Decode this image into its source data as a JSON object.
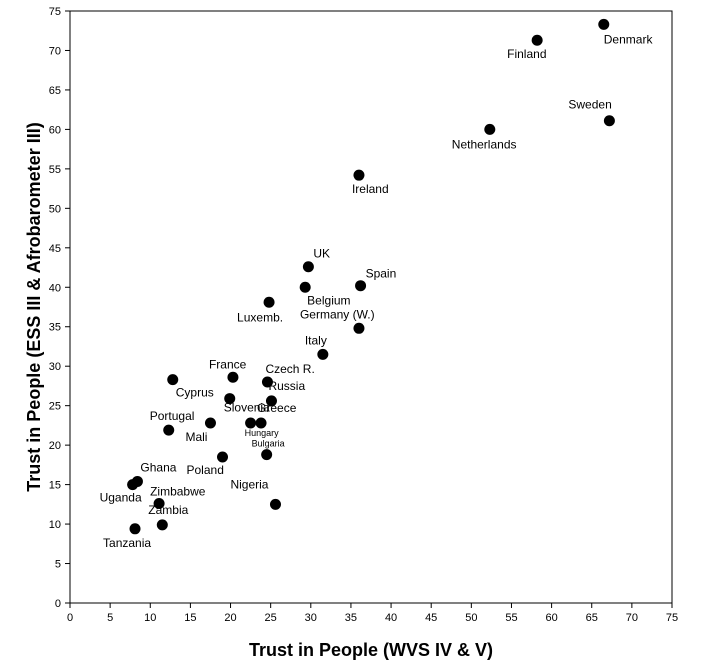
{
  "chart_data": {
    "type": "scatter",
    "title": "",
    "xlabel": "Trust in People (WVS IV & V)",
    "ylabel": "Trust in People (ESS III & Afrobarometer III)",
    "xlim": [
      0,
      75
    ],
    "ylim": [
      0,
      75
    ],
    "x_ticks": [
      0,
      5,
      10,
      15,
      20,
      25,
      30,
      35,
      40,
      45,
      50,
      55,
      60,
      65,
      70,
      75
    ],
    "y_ticks": [
      0,
      5,
      10,
      15,
      20,
      25,
      30,
      35,
      40,
      45,
      50,
      55,
      60,
      65,
      70,
      75
    ],
    "grid": false,
    "marker_color": "#000000",
    "points": [
      {
        "label": "Denmark",
        "x": 66.5,
        "y": 73.3
      },
      {
        "label": "Finland",
        "x": 58.2,
        "y": 71.3
      },
      {
        "label": "Sweden",
        "x": 67.2,
        "y": 61.1
      },
      {
        "label": "Netherlands",
        "x": 52.3,
        "y": 60.0
      },
      {
        "label": "Ireland",
        "x": 36.0,
        "y": 54.2
      },
      {
        "label": "UK",
        "x": 29.7,
        "y": 42.6
      },
      {
        "label": "Spain",
        "x": 36.2,
        "y": 40.2
      },
      {
        "label": "Belgium",
        "x": 29.3,
        "y": 40.0
      },
      {
        "label": "Luxemb.",
        "x": 24.8,
        "y": 38.1
      },
      {
        "label": "Germany (W.)",
        "x": 36.0,
        "y": 34.8
      },
      {
        "label": "Italy",
        "x": 31.5,
        "y": 31.5
      },
      {
        "label": "France",
        "x": 20.3,
        "y": 28.6
      },
      {
        "label": "Cyprus",
        "x": 12.8,
        "y": 28.3
      },
      {
        "label": "Czech R.",
        "x": 24.6,
        "y": 28.0
      },
      {
        "label": "Slovenia",
        "x": 19.9,
        "y": 25.9
      },
      {
        "label": "Russia",
        "x": 25.1,
        "y": 25.6
      },
      {
        "label": "Mali",
        "x": 17.5,
        "y": 22.8
      },
      {
        "label": "Hungary",
        "x": 22.5,
        "y": 22.8
      },
      {
        "label": "Greece",
        "x": 23.8,
        "y": 22.8
      },
      {
        "label": "Portugal",
        "x": 12.3,
        "y": 21.9
      },
      {
        "label": "Bulgaria",
        "x": 24.5,
        "y": 18.8
      },
      {
        "label": "Poland",
        "x": 19.0,
        "y": 18.5
      },
      {
        "label": "Ghana",
        "x": 8.4,
        "y": 15.4
      },
      {
        "label": "Uganda",
        "x": 7.8,
        "y": 15.0
      },
      {
        "label": "Zimbabwe",
        "x": 11.1,
        "y": 12.6
      },
      {
        "label": "Nigeria",
        "x": 25.6,
        "y": 12.5
      },
      {
        "label": "Zambia",
        "x": 11.5,
        "y": 9.9
      },
      {
        "label": "Tanzania",
        "x": 8.1,
        "y": 9.4
      }
    ]
  }
}
